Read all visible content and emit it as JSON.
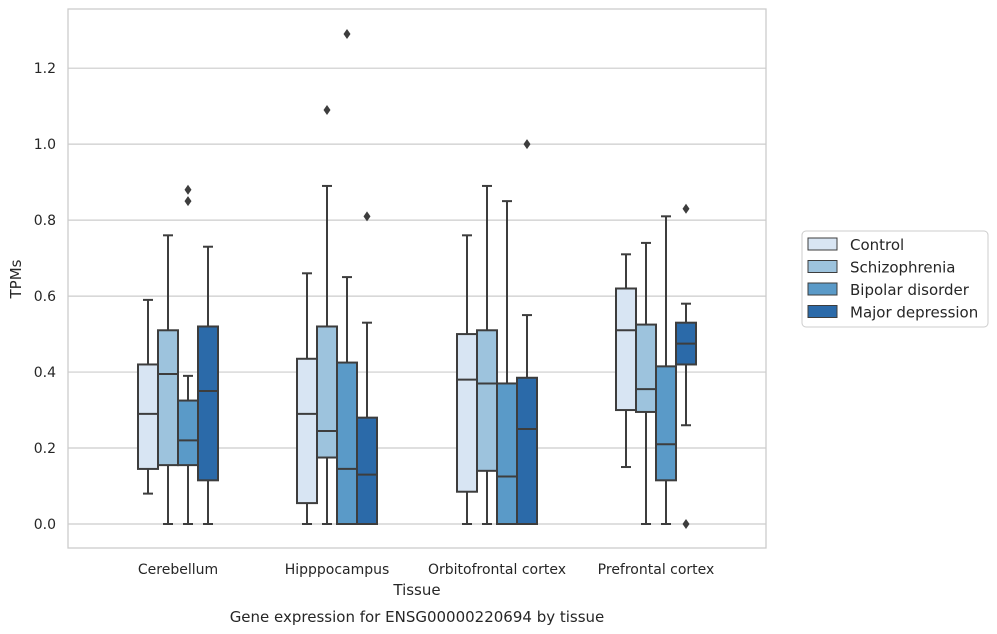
{
  "caption": "Gene expression for ENSG00000220694 by tissue",
  "chart_data": {
    "type": "box",
    "xlabel": "Tissue",
    "ylabel": "TPMs",
    "ylim": [
      -0.065,
      1.36
    ],
    "yticks": [
      0.0,
      0.2,
      0.4,
      0.6,
      0.8,
      1.0,
      1.2
    ],
    "ytick_labels": [
      "0.0",
      "0.2",
      "0.4",
      "0.6",
      "0.8",
      "1.0",
      "1.2"
    ],
    "grid": true,
    "legend_position": "right",
    "categories": [
      "Cerebellum",
      "Hipppocampus",
      "Orbitofrontal cortex",
      "Prefrontal cortex"
    ],
    "series": [
      {
        "name": "Control",
        "color": "#d8e5f3",
        "boxes": [
          {
            "whislo": 0.08,
            "q1": 0.145,
            "med": 0.29,
            "q3": 0.42,
            "whishi": 0.59,
            "fliers": []
          },
          {
            "whislo": 0.0,
            "q1": 0.055,
            "med": 0.29,
            "q3": 0.435,
            "whishi": 0.66,
            "fliers": []
          },
          {
            "whislo": 0.0,
            "q1": 0.085,
            "med": 0.38,
            "q3": 0.5,
            "whishi": 0.76,
            "fliers": []
          },
          {
            "whislo": 0.15,
            "q1": 0.3,
            "med": 0.51,
            "q3": 0.62,
            "whishi": 0.71,
            "fliers": []
          }
        ]
      },
      {
        "name": "Schizophrenia",
        "color": "#9dc3dd",
        "boxes": [
          {
            "whislo": 0.0,
            "q1": 0.155,
            "med": 0.395,
            "q3": 0.51,
            "whishi": 0.76,
            "fliers": []
          },
          {
            "whislo": 0.0,
            "q1": 0.175,
            "med": 0.245,
            "q3": 0.52,
            "whishi": 0.89,
            "fliers": [
              1.09
            ]
          },
          {
            "whislo": 0.0,
            "q1": 0.14,
            "med": 0.37,
            "q3": 0.51,
            "whishi": 0.89,
            "fliers": []
          },
          {
            "whislo": 0.0,
            "q1": 0.295,
            "med": 0.355,
            "q3": 0.525,
            "whishi": 0.74,
            "fliers": []
          }
        ]
      },
      {
        "name": "Bipolar disorder",
        "color": "#5a9ac8",
        "boxes": [
          {
            "whislo": 0.0,
            "q1": 0.155,
            "med": 0.22,
            "q3": 0.325,
            "whishi": 0.39,
            "fliers": [
              0.85,
              0.88
            ]
          },
          {
            "whislo": 0.0,
            "q1": 0.0,
            "med": 0.145,
            "q3": 0.425,
            "whishi": 0.65,
            "fliers": [
              1.29
            ]
          },
          {
            "whislo": 0.0,
            "q1": 0.0,
            "med": 0.125,
            "q3": 0.37,
            "whishi": 0.85,
            "fliers": []
          },
          {
            "whislo": 0.0,
            "q1": 0.115,
            "med": 0.21,
            "q3": 0.415,
            "whishi": 0.81,
            "fliers": []
          }
        ]
      },
      {
        "name": "Major depression",
        "color": "#2b6aa9",
        "boxes": [
          {
            "whislo": 0.0,
            "q1": 0.115,
            "med": 0.35,
            "q3": 0.52,
            "whishi": 0.73,
            "fliers": []
          },
          {
            "whislo": 0.0,
            "q1": 0.0,
            "med": 0.13,
            "q3": 0.28,
            "whishi": 0.53,
            "fliers": [
              0.81
            ]
          },
          {
            "whislo": 0.0,
            "q1": 0.0,
            "med": 0.25,
            "q3": 0.385,
            "whishi": 0.55,
            "fliers": [
              1.0
            ]
          },
          {
            "whislo": 0.26,
            "q1": 0.42,
            "med": 0.475,
            "q3": 0.53,
            "whishi": 0.58,
            "fliers": [
              0.0,
              0.83
            ]
          }
        ]
      }
    ]
  }
}
